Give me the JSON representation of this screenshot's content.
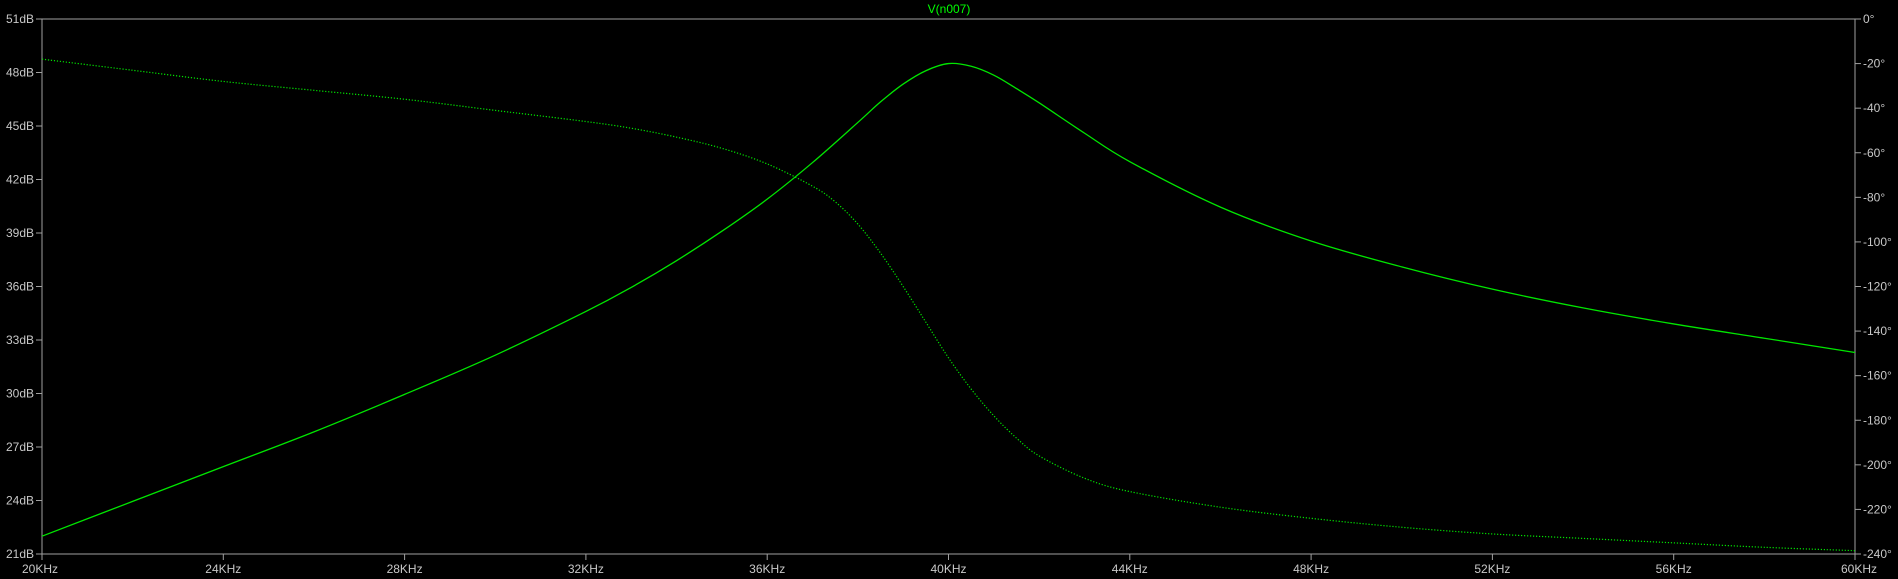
{
  "colors": {
    "background": "#000000",
    "frame": "#a0a0a0",
    "tick_text": "#c8c8c8",
    "trace": "#00e600",
    "title": "#00ff00"
  },
  "chart_data": {
    "type": "line",
    "title": "V(n007)",
    "xlabel": "",
    "ylabel": "",
    "y2label": "",
    "xlim": [
      20000,
      60000
    ],
    "ylim": [
      21,
      51
    ],
    "y2lim": [
      -240,
      0
    ],
    "grid": false,
    "x_ticks": [
      20000,
      24000,
      28000,
      32000,
      36000,
      40000,
      44000,
      48000,
      52000,
      56000,
      60000
    ],
    "x_tick_labels": [
      "20KHz",
      "24KHz",
      "28KHz",
      "32KHz",
      "36KHz",
      "40KHz",
      "44KHz",
      "48KHz",
      "52KHz",
      "56KHz",
      "60KHz"
    ],
    "y_ticks": [
      21,
      24,
      27,
      30,
      33,
      36,
      39,
      42,
      45,
      48,
      51
    ],
    "y_tick_labels": [
      "21dB",
      "24dB",
      "27dB",
      "30dB",
      "33dB",
      "36dB",
      "39dB",
      "42dB",
      "45dB",
      "48dB",
      "51dB"
    ],
    "y2_ticks": [
      -240,
      -220,
      -200,
      -180,
      -160,
      -140,
      -120,
      -100,
      -80,
      -60,
      -40,
      -20,
      0
    ],
    "y2_tick_labels": [
      "-240°",
      "-220°",
      "-200°",
      "-180°",
      "-160°",
      "-140°",
      "-120°",
      "-100°",
      "-80°",
      "-60°",
      "-40°",
      "-20°",
      "0°"
    ],
    "series": [
      {
        "style": "solid",
        "axis": "left",
        "x": [
          20000,
          22000,
          24000,
          26000,
          28000,
          30000,
          32000,
          33000,
          34000,
          35000,
          36000,
          37000,
          38000,
          38500,
          39000,
          39500,
          40000,
          40500,
          41000,
          41500,
          42000,
          43000,
          44000,
          46000,
          48000,
          50000,
          52000,
          54000,
          56000,
          58000,
          60000
        ],
        "values": [
          22.0,
          23.95,
          25.9,
          27.85,
          29.95,
          32.15,
          34.6,
          35.95,
          37.45,
          39.1,
          40.9,
          42.95,
          45.2,
          46.35,
          47.35,
          48.1,
          48.5,
          48.35,
          47.85,
          47.1,
          46.3,
          44.6,
          43.0,
          40.45,
          38.55,
          37.1,
          35.85,
          34.8,
          33.9,
          33.1,
          32.3
        ]
      },
      {
        "style": "dotted",
        "axis": "right",
        "x": [
          20000,
          22000,
          24000,
          26000,
          28000,
          30000,
          32000,
          33000,
          34000,
          35000,
          36000,
          37000,
          37500,
          38000,
          38500,
          39000,
          39500,
          40000,
          40500,
          41000,
          41500,
          42000,
          43000,
          44000,
          46000,
          48000,
          50000,
          52000,
          54000,
          56000,
          58000,
          60000
        ],
        "values": [
          -18,
          -23,
          -28,
          -32,
          -36,
          -41,
          -46,
          -49,
          -53,
          -58,
          -65,
          -75,
          -82,
          -92,
          -105,
          -120,
          -136,
          -152,
          -166,
          -178,
          -188,
          -196,
          -206,
          -212,
          -219,
          -224,
          -228,
          -231,
          -233,
          -235,
          -237,
          -238.5
        ]
      }
    ]
  }
}
